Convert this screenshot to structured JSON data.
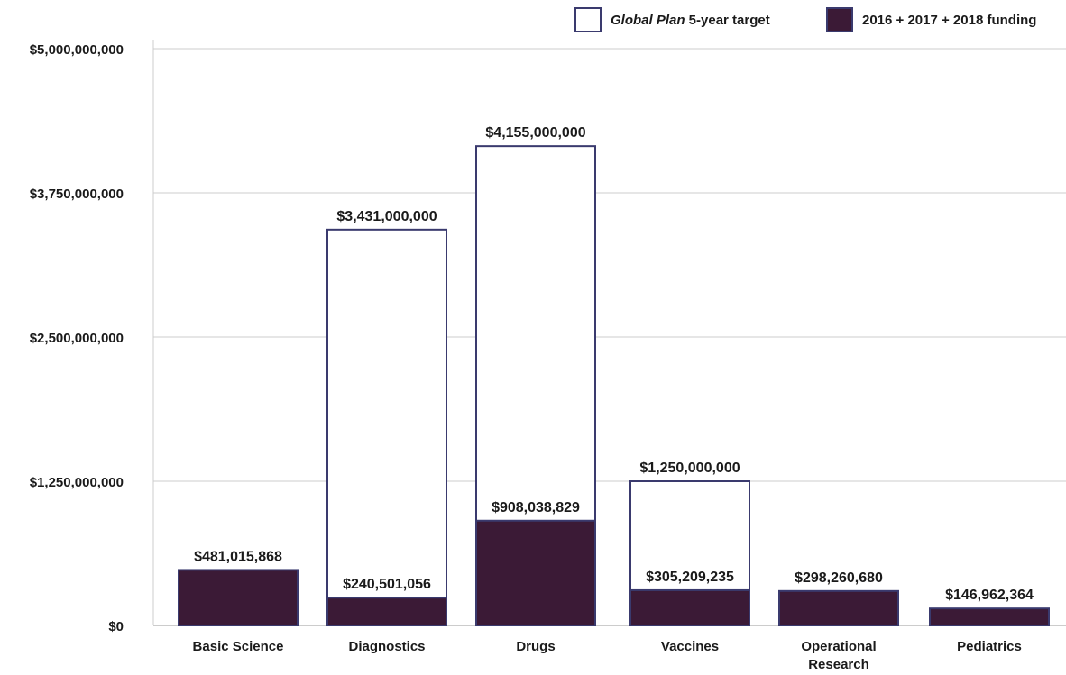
{
  "legend": {
    "target_italic": "Global Plan",
    "target_rest": " 5-year target",
    "funding": "2016 + 2017 + 2018 funding"
  },
  "chart_data": {
    "type": "bar",
    "title": "",
    "xlabel": "",
    "ylabel": "",
    "ylim": [
      0,
      5000000000
    ],
    "yticks": [
      0,
      1250000000,
      2500000000,
      3750000000,
      5000000000
    ],
    "ytick_labels": [
      "$0",
      "$1,250,000,000",
      "$2,500,000,000",
      "$3,750,000,000",
      "$5,000,000,000"
    ],
    "grid": "horizontal",
    "legend_position": "top-right",
    "categories": [
      [
        "Basic Science"
      ],
      [
        "Diagnostics"
      ],
      [
        "Drugs"
      ],
      [
        "Vaccines"
      ],
      [
        "Operational",
        "Research"
      ],
      [
        "Pediatrics"
      ]
    ],
    "series": [
      {
        "name": "Global Plan 5-year target",
        "style": "outline",
        "values": [
          null,
          3431000000,
          4155000000,
          1250000000,
          null,
          null
        ],
        "labels": [
          null,
          "$3,431,000,000",
          "$4,155,000,000",
          "$1,250,000,000",
          null,
          null
        ]
      },
      {
        "name": "2016 + 2017 + 2018 funding",
        "style": "filled",
        "values": [
          481015868,
          240501056,
          908038829,
          305209235,
          298260680,
          146962364
        ],
        "labels": [
          "$481,015,868",
          "$240,501,056",
          "$908,038,829",
          "$305,209,235",
          "$298,260,680",
          "$146,962,364"
        ]
      }
    ],
    "colors": {
      "fill": "#3b1a36",
      "outline": "#3a3a6e",
      "grid": "#cccccc",
      "text": "#1a1a1a"
    }
  }
}
